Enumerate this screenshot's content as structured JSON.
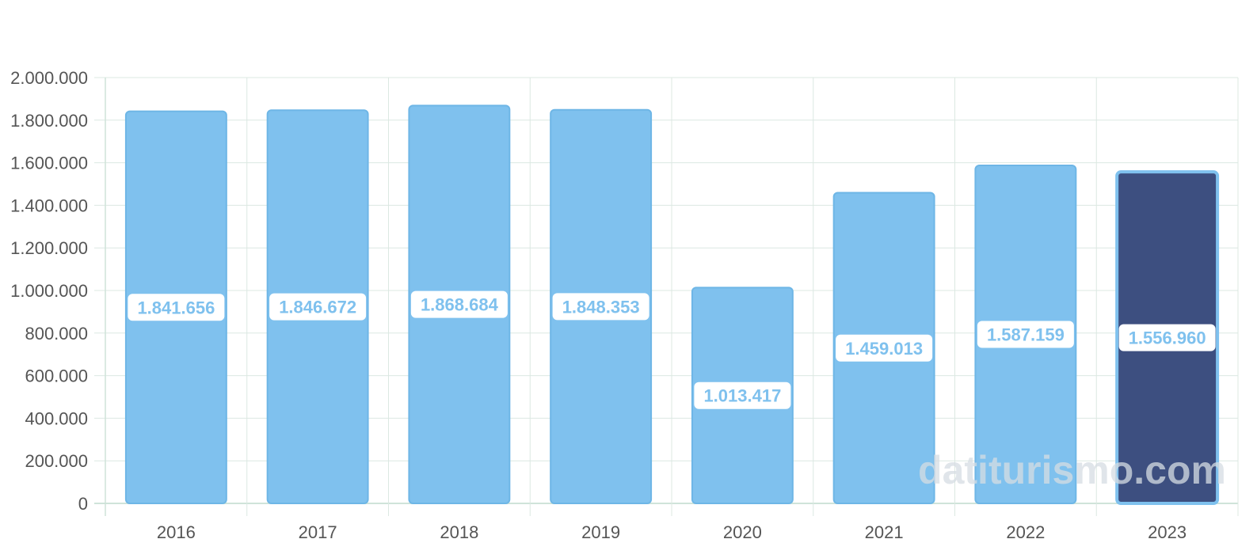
{
  "chart_data": {
    "type": "bar",
    "title": "",
    "xlabel": "",
    "ylabel": "",
    "categories": [
      "2016",
      "2017",
      "2018",
      "2019",
      "2020",
      "2021",
      "2022",
      "2023"
    ],
    "values": [
      1841656,
      1846672,
      1868684,
      1848353,
      1013417,
      1459013,
      1587159,
      1556960
    ],
    "data_labels": [
      "1.841.656",
      "1.846.672",
      "1.868.684",
      "1.848.353",
      "1.013.417",
      "1.459.013",
      "1.587.159",
      "1.556.960"
    ],
    "ylim": [
      0,
      2000000
    ],
    "y_ticks": [
      0,
      200000,
      400000,
      600000,
      800000,
      1000000,
      1200000,
      1400000,
      1600000,
      1800000,
      2000000
    ],
    "y_tick_labels": [
      "0",
      "200.000",
      "400.000",
      "600.000",
      "800.000",
      "1.000.000",
      "1.200.000",
      "1.400.000",
      "1.600.000",
      "1.800.000",
      "2.000.000"
    ],
    "grid": true,
    "legend": "none",
    "highlighted_category": "2023",
    "colors": {
      "bar": "#7fc1ee",
      "bar_border": "#6eb6e6",
      "highlight_bar": "#3d4f80",
      "data_label_text": "#7fc1ee",
      "data_label_bg": "#ffffff",
      "grid": "#dce8e2",
      "axis": "#cfe3d9",
      "tick_text": "#555555"
    }
  },
  "watermark": {
    "text": "datiturismo.com"
  }
}
